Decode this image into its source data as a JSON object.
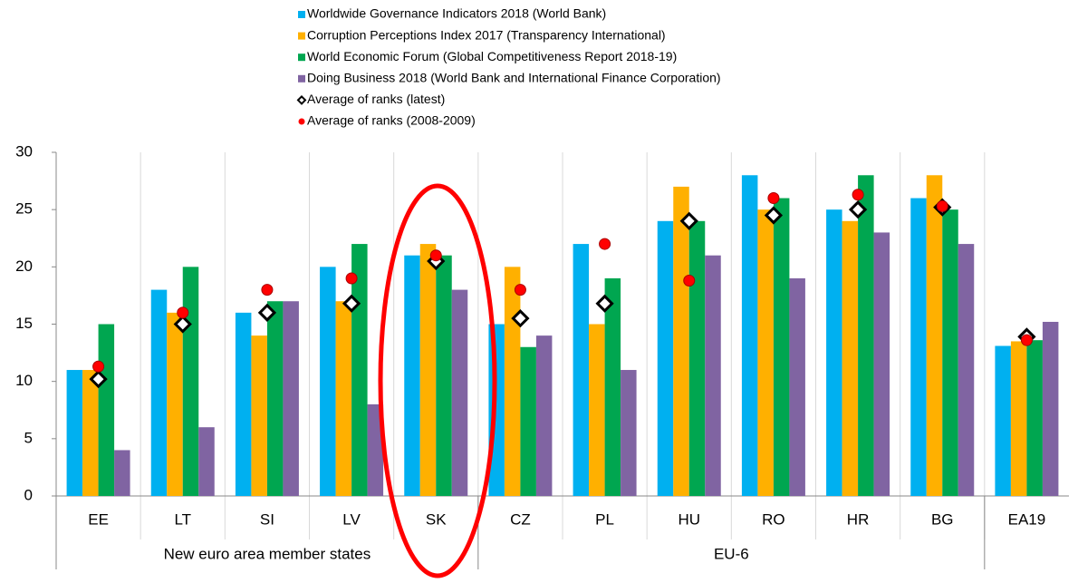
{
  "chart_data": {
    "type": "bar",
    "categories": [
      "EE",
      "LT",
      "SI",
      "LV",
      "SK",
      "CZ",
      "PL",
      "HU",
      "RO",
      "HR",
      "BG",
      "EA19"
    ],
    "groups": [
      {
        "label": "New euro area member states",
        "categories": [
          "EE",
          "LT",
          "SI",
          "LV",
          "SK"
        ]
      },
      {
        "label": "EU-6",
        "categories": [
          "CZ",
          "PL",
          "HU",
          "RO",
          "HR",
          "BG"
        ]
      }
    ],
    "series": [
      {
        "name": "Worldwide Governance Indicators 2018 (World Bank)",
        "kind": "bar",
        "color": "#00b0f0",
        "values": [
          11,
          18,
          16,
          20,
          21,
          15,
          22,
          24,
          28,
          25,
          26,
          13.1
        ]
      },
      {
        "name": "Corruption Perceptions Index 2017 (Transparency International)",
        "kind": "bar",
        "color": "#ffb000",
        "values": [
          11,
          16,
          14,
          17,
          22,
          20,
          15,
          27,
          25,
          24,
          28,
          13.5
        ]
      },
      {
        "name": "World Economic Forum (Global Competitiveness Report  2018-19)",
        "kind": "bar",
        "color": "#00a650",
        "values": [
          15,
          20,
          17,
          22,
          21,
          13,
          19,
          24,
          26,
          28,
          25,
          13.6
        ]
      },
      {
        "name": "Doing Business 2018  (World Bank and International Finance Corporation)",
        "kind": "bar",
        "color": "#8064a2",
        "values": [
          4,
          6,
          17,
          8,
          18,
          14,
          11,
          21,
          19,
          23,
          22,
          15.2
        ]
      },
      {
        "name": "Average of ranks (latest)",
        "kind": "diamond",
        "color": "#000000",
        "values": [
          10.2,
          15,
          16,
          16.8,
          20.5,
          15.5,
          16.8,
          24,
          24.5,
          25,
          25.2,
          13.9
        ]
      },
      {
        "name": "Average of ranks (2008-2009)",
        "kind": "circle",
        "color": "#ff0000",
        "values": [
          11.3,
          16,
          18,
          19,
          21,
          18,
          22,
          18.8,
          26,
          26.3,
          25.3,
          13.6
        ]
      }
    ],
    "ylim": [
      0,
      30
    ],
    "yticks": [
      0,
      5,
      10,
      15,
      20,
      25,
      30
    ],
    "grid": true
  }
}
